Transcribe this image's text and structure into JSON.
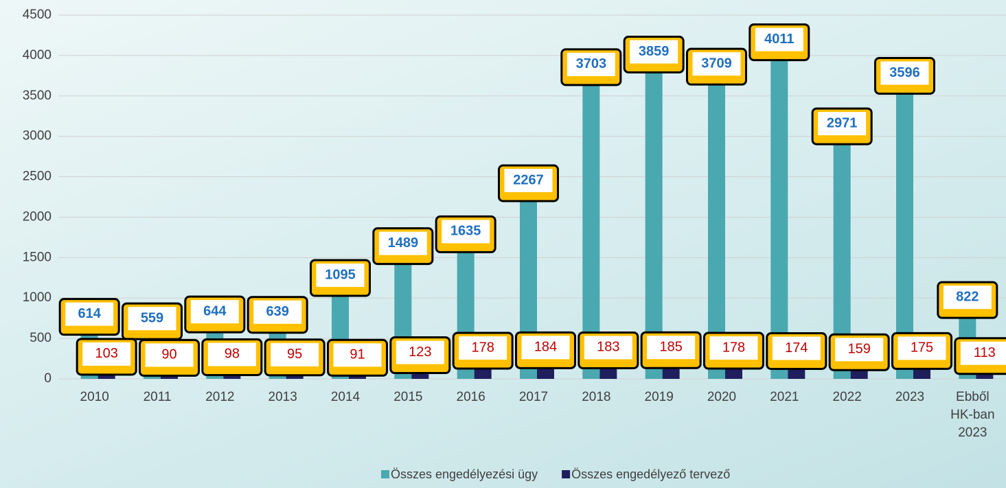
{
  "chart_data": {
    "type": "bar",
    "categories": [
      "2010",
      "2011",
      "2012",
      "2013",
      "2014",
      "2015",
      "2016",
      "2017",
      "2018",
      "2019",
      "2020",
      "2021",
      "2022",
      "2023",
      "Ebből HK-ban 2023"
    ],
    "series": [
      {
        "name": "Összes engedélyezési ügy",
        "color": "#4aa8b0",
        "label_color": "#1f6fbf",
        "values": [
          614,
          559,
          644,
          639,
          1095,
          1489,
          1635,
          2267,
          3703,
          3859,
          3709,
          4011,
          2971,
          3596,
          822
        ]
      },
      {
        "name": "Összes engedélyező tervező",
        "color": "#1f1f5e",
        "label_color": "#c00000",
        "values": [
          103,
          90,
          98,
          95,
          91,
          123,
          178,
          184,
          183,
          185,
          178,
          174,
          159,
          175,
          113
        ]
      }
    ],
    "ylim": [
      0,
      4500
    ],
    "yticks": [
      0,
      500,
      1000,
      1500,
      2000,
      2500,
      3000,
      3500,
      4000,
      4500
    ],
    "grid": true,
    "legend": "bottom"
  }
}
